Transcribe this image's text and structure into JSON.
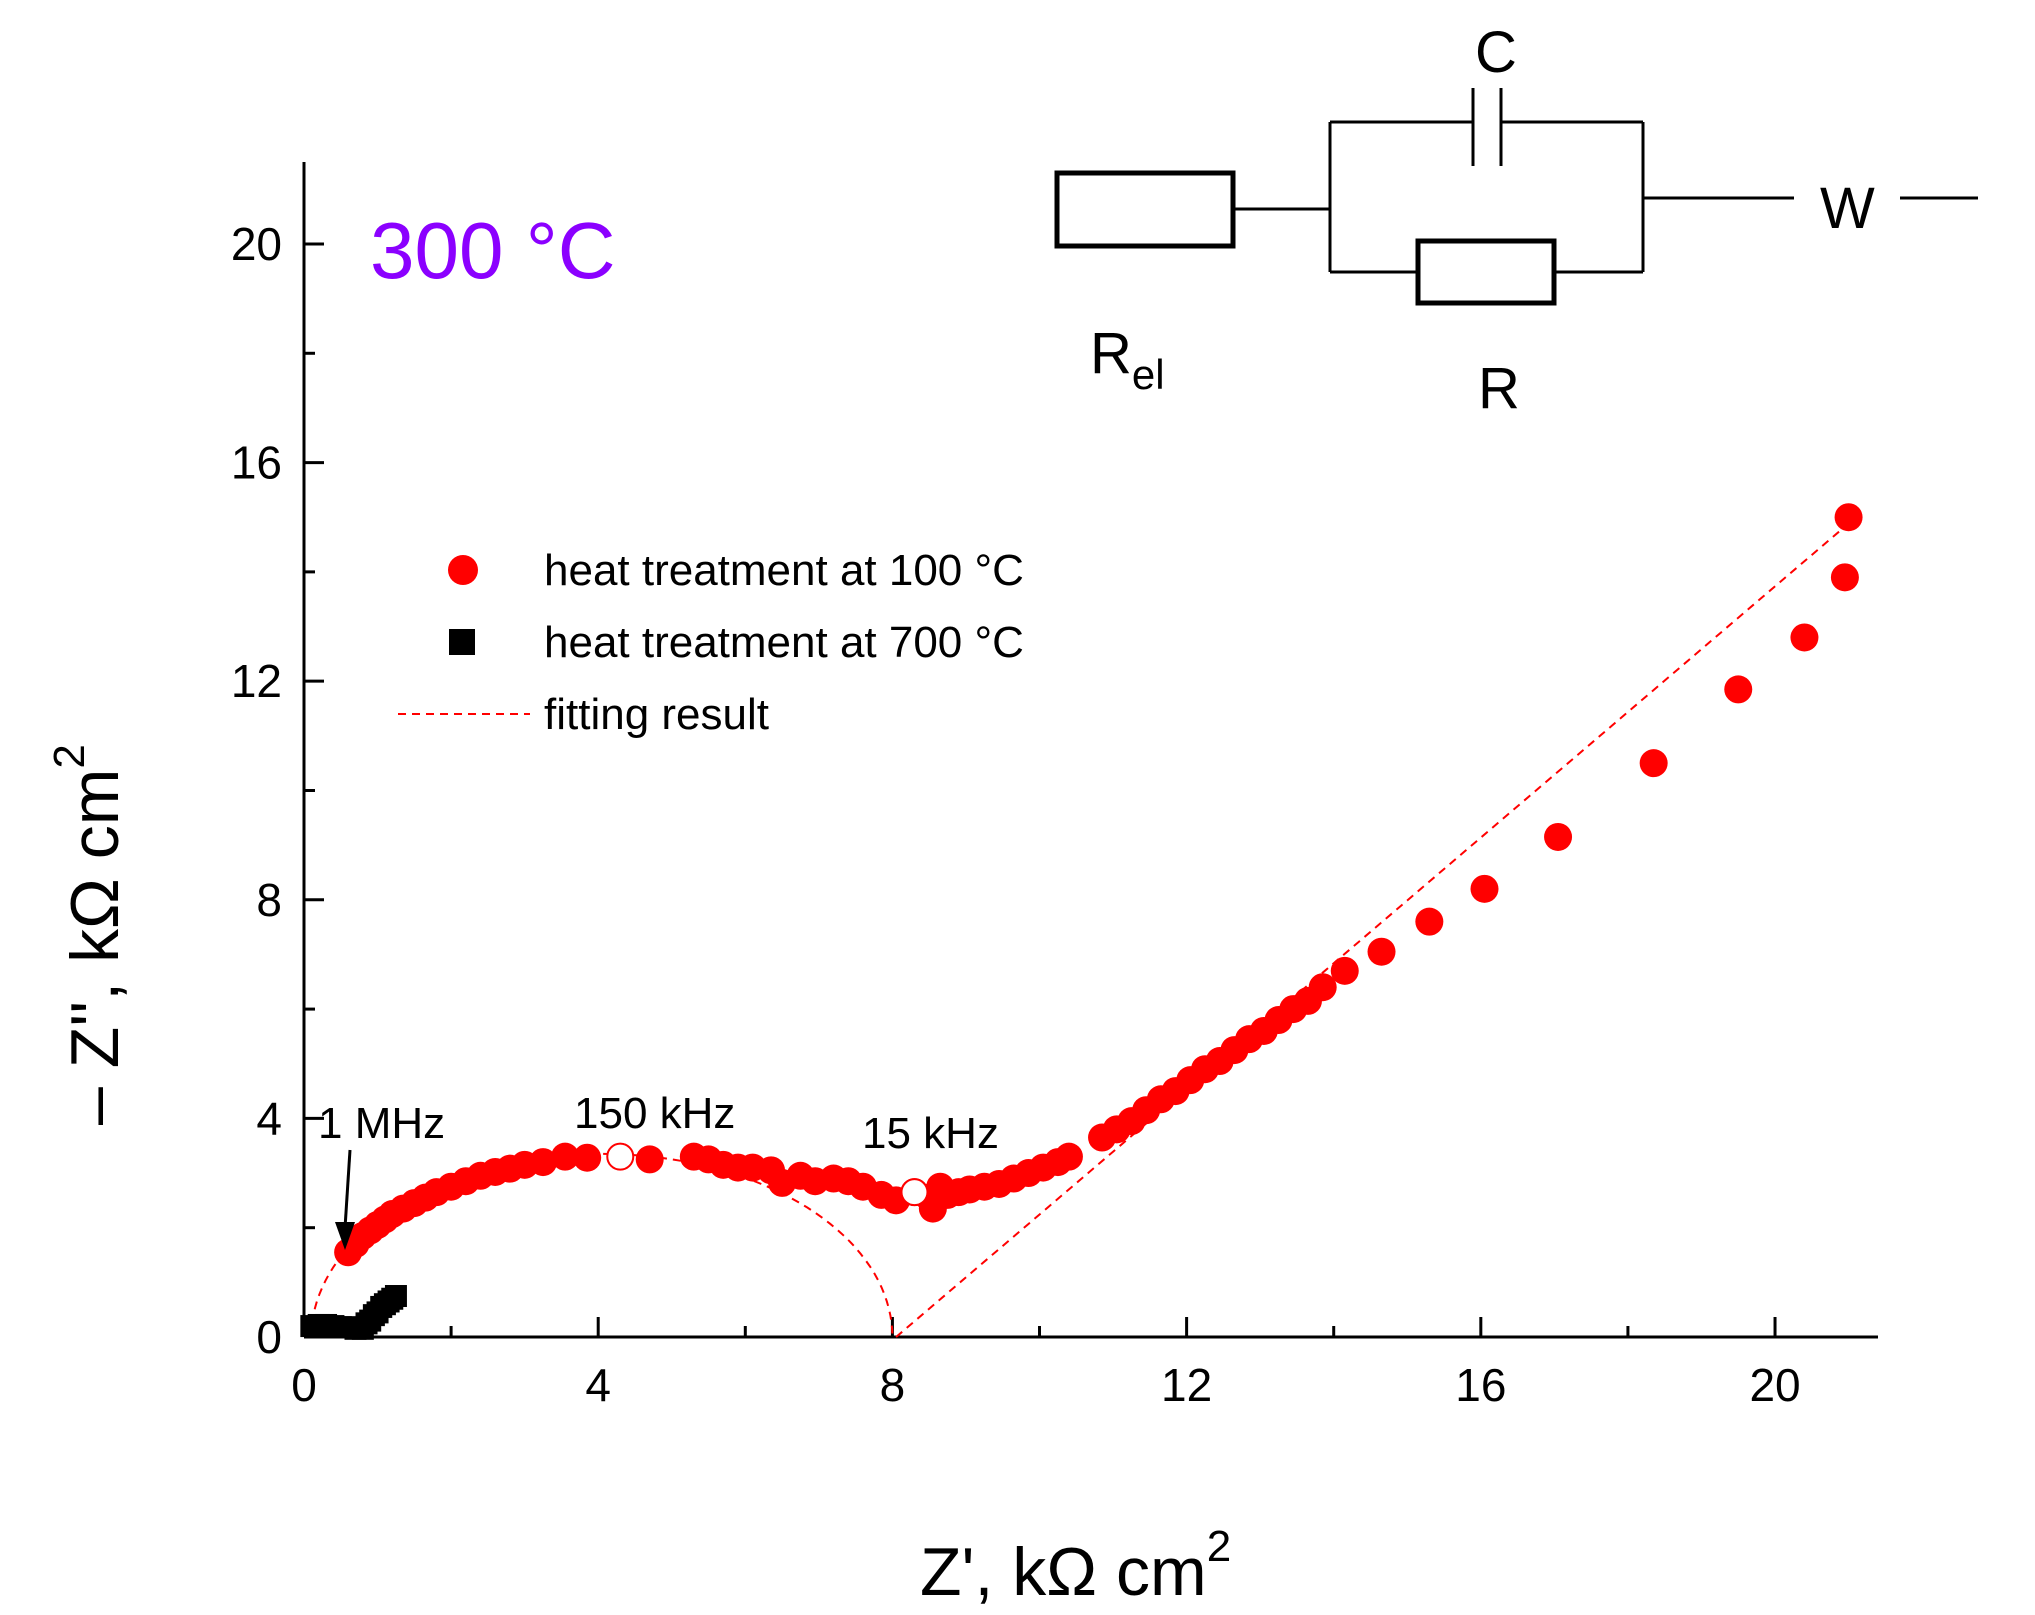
{
  "colors": {
    "series_100": "#ff0000",
    "series_700": "#000000",
    "fit": "#ff0000",
    "temperature": "#8b00ff"
  },
  "chart_data": {
    "type": "scatter",
    "title": "",
    "temperature_label": "300 °C",
    "xlabel": "Z', kΩ cm",
    "xlabel_sup": "2",
    "ylabel": "– Z'', kΩ cm",
    "ylabel_sup": "2",
    "xlim": [
      0,
      21.4
    ],
    "ylim": [
      0,
      21.5
    ],
    "x_ticks": [
      0,
      4,
      8,
      12,
      16,
      20
    ],
    "y_ticks": [
      0,
      4,
      8,
      12,
      16,
      20
    ],
    "legend_position": "upper-left",
    "series": [
      {
        "name": "heat treatment at 100 °C",
        "marker": "circle",
        "points": [
          [
            0.6,
            1.55
          ],
          [
            0.7,
            1.7
          ],
          [
            0.8,
            1.85
          ],
          [
            0.9,
            1.95
          ],
          [
            1.0,
            2.05
          ],
          [
            1.1,
            2.15
          ],
          [
            1.2,
            2.25
          ],
          [
            1.35,
            2.35
          ],
          [
            1.5,
            2.45
          ],
          [
            1.65,
            2.55
          ],
          [
            1.8,
            2.65
          ],
          [
            2.0,
            2.75
          ],
          [
            2.2,
            2.85
          ],
          [
            2.4,
            2.95
          ],
          [
            2.6,
            3.02
          ],
          [
            2.8,
            3.08
          ],
          [
            3.0,
            3.15
          ],
          [
            3.25,
            3.2
          ],
          [
            3.55,
            3.3
          ],
          [
            3.85,
            3.28
          ],
          [
            4.7,
            3.25
          ],
          [
            5.3,
            3.3
          ],
          [
            5.5,
            3.25
          ],
          [
            5.7,
            3.15
          ],
          [
            5.9,
            3.1
          ],
          [
            6.1,
            3.1
          ],
          [
            6.35,
            3.05
          ],
          [
            6.5,
            2.82
          ],
          [
            6.75,
            2.95
          ],
          [
            6.95,
            2.85
          ],
          [
            7.2,
            2.9
          ],
          [
            7.4,
            2.85
          ],
          [
            7.6,
            2.75
          ],
          [
            7.85,
            2.6
          ],
          [
            8.05,
            2.5
          ],
          [
            8.3,
            2.65
          ],
          [
            8.5,
            2.55
          ],
          [
            8.55,
            2.35
          ],
          [
            8.65,
            2.75
          ],
          [
            8.75,
            2.6
          ],
          [
            8.9,
            2.65
          ],
          [
            9.05,
            2.7
          ],
          [
            9.25,
            2.75
          ],
          [
            9.45,
            2.8
          ],
          [
            9.65,
            2.9
          ],
          [
            9.85,
            3.0
          ],
          [
            10.05,
            3.1
          ],
          [
            10.25,
            3.2
          ],
          [
            10.4,
            3.3
          ],
          [
            10.85,
            3.65
          ],
          [
            11.05,
            3.8
          ],
          [
            11.25,
            3.95
          ],
          [
            11.45,
            4.15
          ],
          [
            11.65,
            4.35
          ],
          [
            11.85,
            4.5
          ],
          [
            12.05,
            4.7
          ],
          [
            12.25,
            4.9
          ],
          [
            12.45,
            5.05
          ],
          [
            12.65,
            5.25
          ],
          [
            12.85,
            5.45
          ],
          [
            13.05,
            5.6
          ],
          [
            13.25,
            5.8
          ],
          [
            13.45,
            6.0
          ],
          [
            13.65,
            6.15
          ],
          [
            13.85,
            6.4
          ],
          [
            14.15,
            6.7
          ],
          [
            14.65,
            7.05
          ],
          [
            15.3,
            7.6
          ],
          [
            16.05,
            8.2
          ],
          [
            17.05,
            9.15
          ],
          [
            18.35,
            10.5
          ],
          [
            19.5,
            11.85
          ],
          [
            20.4,
            12.8
          ],
          [
            20.95,
            13.9
          ],
          [
            21.0,
            15.0
          ]
        ],
        "open_points": [
          [
            4.3,
            3.3
          ],
          [
            8.3,
            2.65
          ]
        ]
      },
      {
        "name": "heat treatment at 700 °C",
        "marker": "square",
        "points": [
          [
            0.1,
            0.2
          ],
          [
            0.2,
            0.22
          ],
          [
            0.3,
            0.22
          ],
          [
            0.4,
            0.2
          ],
          [
            0.5,
            0.18
          ],
          [
            0.6,
            0.18
          ],
          [
            0.7,
            0.15
          ],
          [
            0.8,
            0.15
          ],
          [
            0.85,
            0.25
          ],
          [
            0.9,
            0.3
          ],
          [
            0.95,
            0.4
          ],
          [
            1.0,
            0.45
          ],
          [
            1.05,
            0.55
          ],
          [
            1.1,
            0.6
          ],
          [
            1.15,
            0.65
          ],
          [
            1.2,
            0.7
          ],
          [
            1.25,
            0.75
          ]
        ]
      },
      {
        "name": "fitting result",
        "line": "dashed",
        "curve_semicircle": [
          [
            0.1,
            0.0
          ],
          [
            8.0,
            0.0
          ]
        ],
        "curve_diagonal": [
          [
            8.05,
            0.0
          ],
          [
            21.1,
            15.0
          ]
        ]
      }
    ],
    "annotations": [
      {
        "text": "1 MHz",
        "x": 0.6,
        "y": 1.55
      },
      {
        "text": "150 kHz",
        "x": 4.3,
        "y": 3.3
      },
      {
        "text": "15 kHz",
        "x": 8.3,
        "y": 2.65
      }
    ]
  },
  "circuit": {
    "labels": {
      "capacitor": "C",
      "r_el": "R",
      "r_el_sub": "el",
      "resistor": "R",
      "warburg": "W"
    }
  }
}
